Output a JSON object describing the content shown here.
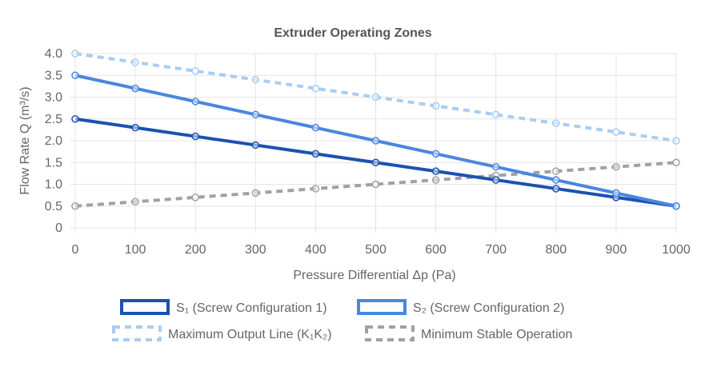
{
  "chart_data": {
    "type": "line",
    "title": "Extruder Operating Zones",
    "xlabel": "Pressure Differential Δp (Pa)",
    "ylabel": "Flow Rate Q (m³/s)",
    "x": [
      0,
      100,
      200,
      300,
      400,
      500,
      600,
      700,
      800,
      900,
      1000
    ],
    "x_ticks": [
      "0",
      "100",
      "200",
      "300",
      "400",
      "500",
      "600",
      "700",
      "800",
      "900",
      "1000"
    ],
    "y_ticks": [
      "0",
      "0.5",
      "1.0",
      "1.5",
      "2.0",
      "2.5",
      "3.0",
      "3.5",
      "4.0"
    ],
    "xlim": [
      0,
      1000
    ],
    "ylim": [
      0,
      4
    ],
    "grid": true,
    "legend_position": "bottom",
    "series": [
      {
        "name": "S₁ (Screw Configuration 1)",
        "color": "#1a52b0",
        "dashed": false,
        "values": [
          2.5,
          2.3,
          2.1,
          1.9,
          1.7,
          1.5,
          1.3,
          1.1,
          0.9,
          0.7,
          0.5
        ]
      },
      {
        "name": "S₂ (Screw Configuration 2)",
        "color": "#4a86e0",
        "dashed": false,
        "values": [
          3.5,
          3.2,
          2.9,
          2.6,
          2.3,
          2.0,
          1.7,
          1.4,
          1.1,
          0.8,
          0.5
        ]
      },
      {
        "name": "Maximum Output Line (K₁K₂)",
        "color": "#a8cdf2",
        "dashed": true,
        "values": [
          4.0,
          3.8,
          3.6,
          3.4,
          3.2,
          3.0,
          2.8,
          2.6,
          2.4,
          2.2,
          2.0
        ]
      },
      {
        "name": "Minimum Stable Operation",
        "color": "#a0a0a8",
        "dashed": true,
        "values": [
          0.5,
          0.6,
          0.7,
          0.8,
          0.9,
          1.0,
          1.1,
          1.2,
          1.3,
          1.4,
          1.5
        ]
      }
    ]
  }
}
